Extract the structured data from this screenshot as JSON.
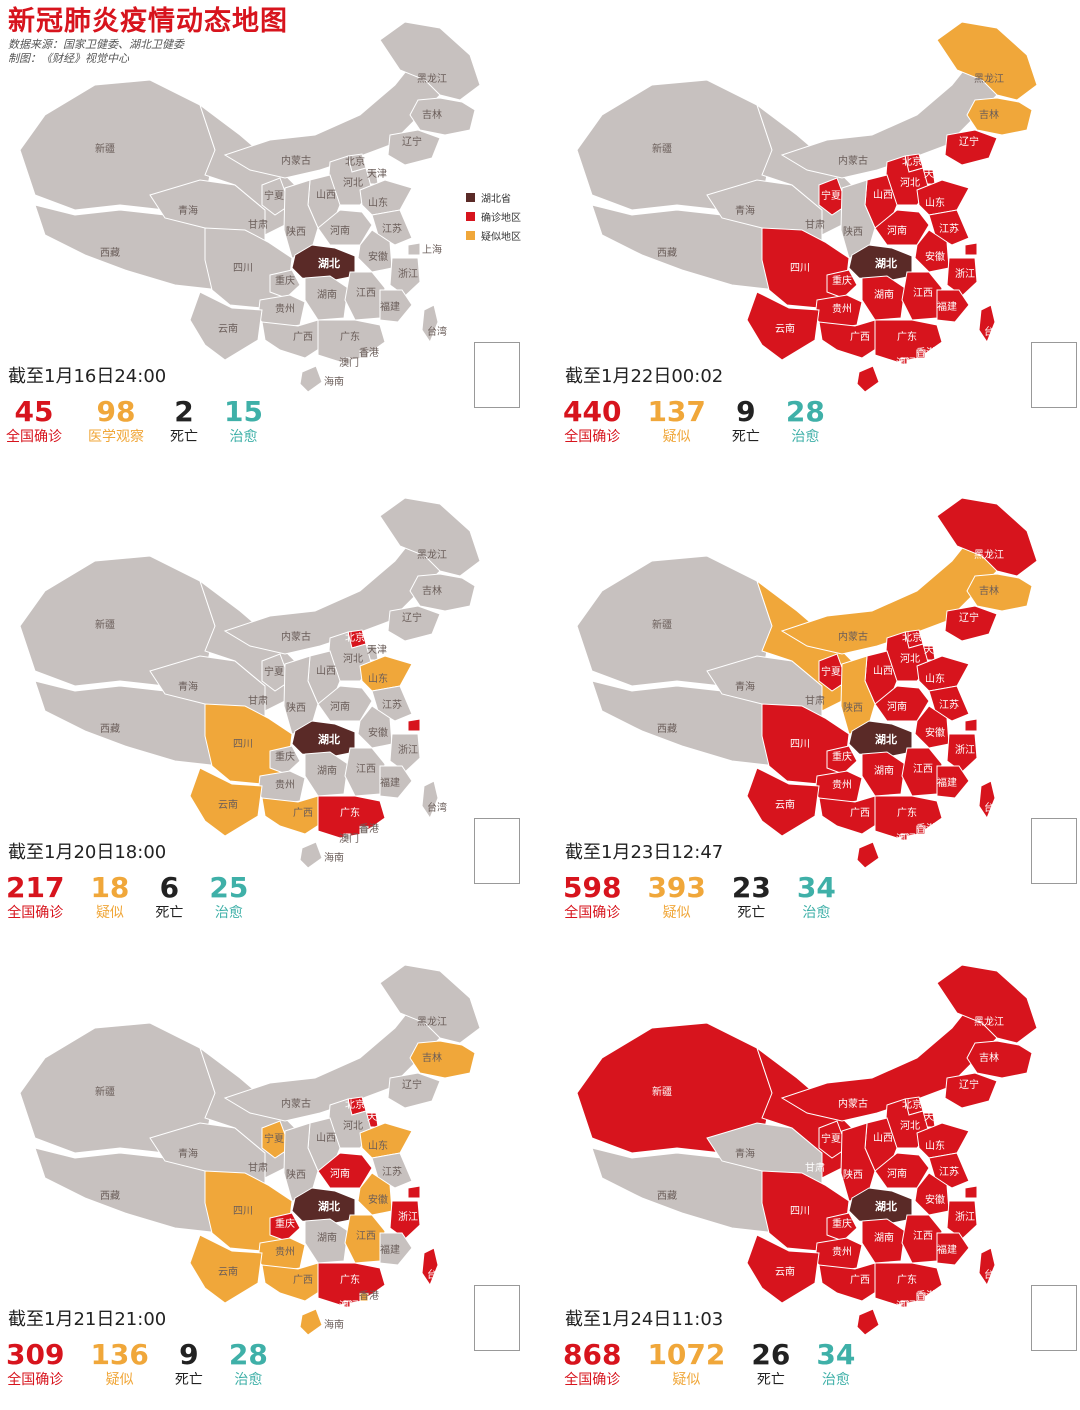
{
  "header": {
    "title": "新冠肺炎疫情动态地图",
    "source": "数据来源：国家卫健委、湖北卫健委",
    "credit": "制图：《财经》视觉中心"
  },
  "legend": [
    {
      "label": "湖北省",
      "color": "#5a2a27"
    },
    {
      "label": "确诊地区",
      "color": "#d7141d"
    },
    {
      "label": "疑似地区",
      "color": "#f0a73a"
    }
  ],
  "colors": {
    "gray": "#c7c1bf",
    "confirmed": "#d7141d",
    "suspected": "#f0a73a",
    "hubei": "#5a2a27",
    "border": "#ffffff",
    "text_gray": "#6a5d59",
    "teal": "#3fb0a8"
  },
  "provinces": [
    "新疆",
    "西藏",
    "青海",
    "甘肃",
    "宁夏",
    "内蒙古",
    "黑龙江",
    "吉林",
    "辽宁",
    "北京",
    "天津",
    "河北",
    "山西",
    "陕西",
    "山东",
    "河南",
    "江苏",
    "上海",
    "安徽",
    "湖北",
    "四川",
    "重庆",
    "湖南",
    "江西",
    "浙江",
    "贵州",
    "云南",
    "广西",
    "广东",
    "福建",
    "台湾",
    "香港",
    "澳门",
    "海南"
  ],
  "panels": [
    {
      "timestamp": "截至1月16日24:00",
      "stats": [
        {
          "value": "45",
          "label": "全国确诊",
          "color": "red"
        },
        {
          "value": "98",
          "label": "医学观察",
          "color": "orange"
        },
        {
          "value": "2",
          "label": "死亡",
          "color": "dark"
        },
        {
          "value": "15",
          "label": "治愈",
          "color": "teal"
        }
      ],
      "confirmed": [],
      "suspected": []
    },
    {
      "timestamp": "截至1月22日00:02",
      "stats": [
        {
          "value": "440",
          "label": "全国确诊",
          "color": "red"
        },
        {
          "value": "137",
          "label": "疑似",
          "color": "orange"
        },
        {
          "value": "9",
          "label": "死亡",
          "color": "dark"
        },
        {
          "value": "28",
          "label": "治愈",
          "color": "teal"
        }
      ],
      "confirmed": [
        "宁夏",
        "辽宁",
        "北京",
        "天津",
        "河北",
        "山西",
        "山东",
        "河南",
        "江苏",
        "上海",
        "安徽",
        "四川",
        "重庆",
        "湖南",
        "江西",
        "浙江",
        "贵州",
        "云南",
        "广西",
        "广东",
        "福建",
        "台湾",
        "香港",
        "澳门",
        "海南"
      ],
      "suspected": [
        "黑龙江",
        "吉林"
      ]
    },
    {
      "timestamp": "截至1月20日18:00",
      "stats": [
        {
          "value": "217",
          "label": "全国确诊",
          "color": "red"
        },
        {
          "value": "18",
          "label": "疑似",
          "color": "orange"
        },
        {
          "value": "6",
          "label": "死亡",
          "color": "dark"
        },
        {
          "value": "25",
          "label": "治愈",
          "color": "teal"
        }
      ],
      "confirmed": [
        "北京",
        "上海",
        "广东"
      ],
      "suspected": [
        "山东",
        "四川",
        "云南",
        "广西"
      ]
    },
    {
      "timestamp": "截至1月23日12:47",
      "stats": [
        {
          "value": "598",
          "label": "全国确诊",
          "color": "red"
        },
        {
          "value": "393",
          "label": "疑似",
          "color": "orange"
        },
        {
          "value": "23",
          "label": "死亡",
          "color": "dark"
        },
        {
          "value": "34",
          "label": "治愈",
          "color": "teal"
        }
      ],
      "confirmed": [
        "黑龙江",
        "宁夏",
        "辽宁",
        "北京",
        "天津",
        "河北",
        "山西",
        "山东",
        "河南",
        "江苏",
        "上海",
        "安徽",
        "四川",
        "重庆",
        "湖南",
        "江西",
        "浙江",
        "贵州",
        "云南",
        "广西",
        "广东",
        "福建",
        "台湾",
        "香港",
        "澳门",
        "海南"
      ],
      "suspected": [
        "吉林",
        "内蒙古",
        "陕西",
        "甘肃"
      ]
    },
    {
      "timestamp": "截至1月21日21:00",
      "stats": [
        {
          "value": "309",
          "label": "全国确诊",
          "color": "red"
        },
        {
          "value": "136",
          "label": "疑似",
          "color": "orange"
        },
        {
          "value": "9",
          "label": "死亡",
          "color": "dark"
        },
        {
          "value": "28",
          "label": "治愈",
          "color": "teal"
        }
      ],
      "confirmed": [
        "北京",
        "天津",
        "河南",
        "重庆",
        "浙江",
        "上海",
        "广东",
        "台湾",
        "澳门"
      ],
      "suspected": [
        "吉林",
        "山东",
        "宁夏",
        "安徽",
        "四川",
        "云南",
        "贵州",
        "广西",
        "江西",
        "香港",
        "海南"
      ]
    },
    {
      "timestamp": "截至1月24日11:03",
      "stats": [
        {
          "value": "868",
          "label": "全国确诊",
          "color": "red"
        },
        {
          "value": "1072",
          "label": "疑似",
          "color": "orange"
        },
        {
          "value": "26",
          "label": "死亡",
          "color": "dark"
        },
        {
          "value": "34",
          "label": "治愈",
          "color": "teal"
        }
      ],
      "confirmed": [
        "新疆",
        "甘肃",
        "宁夏",
        "内蒙古",
        "黑龙江",
        "吉林",
        "辽宁",
        "北京",
        "天津",
        "河北",
        "山西",
        "陕西",
        "山东",
        "河南",
        "江苏",
        "上海",
        "安徽",
        "四川",
        "重庆",
        "湖南",
        "江西",
        "浙江",
        "贵州",
        "云南",
        "广西",
        "广东",
        "福建",
        "台湾",
        "香港",
        "澳门",
        "海南"
      ],
      "suspected": []
    }
  ]
}
